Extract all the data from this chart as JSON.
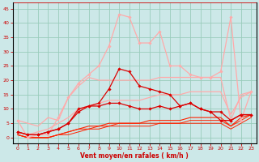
{
  "xlabel": "Vent moyen/en rafales ( km/h )",
  "bg_color": "#cce8e8",
  "grid_color": "#99ccbb",
  "xlim": [
    -0.5,
    23.5
  ],
  "ylim": [
    -2,
    47
  ],
  "yticks": [
    0,
    5,
    10,
    15,
    20,
    25,
    30,
    35,
    40,
    45
  ],
  "xticks": [
    0,
    1,
    2,
    3,
    4,
    5,
    6,
    7,
    8,
    9,
    10,
    11,
    12,
    13,
    14,
    15,
    16,
    17,
    18,
    19,
    20,
    21,
    22,
    23
  ],
  "series": [
    {
      "x": [
        0,
        1,
        2,
        3,
        4,
        5,
        6,
        7,
        8,
        9,
        10,
        11,
        12,
        13,
        14,
        15,
        16,
        17,
        18,
        19,
        20,
        21,
        22,
        23
      ],
      "y": [
        6,
        5,
        4,
        7,
        6,
        14,
        18,
        21,
        20,
        20,
        20,
        20,
        20,
        20,
        21,
        21,
        21,
        21,
        21,
        21,
        21,
        6,
        15,
        16
      ],
      "color": "#ffaaaa",
      "marker": null,
      "lw": 0.9
    },
    {
      "x": [
        0,
        1,
        2,
        3,
        4,
        5,
        6,
        7,
        8,
        9,
        10,
        11,
        12,
        13,
        14,
        15,
        16,
        17,
        18,
        19,
        20,
        21,
        22,
        23
      ],
      "y": [
        6,
        0,
        1,
        1,
        7,
        14,
        19,
        22,
        25,
        32,
        43,
        42,
        33,
        33,
        37,
        25,
        25,
        22,
        21,
        21,
        23,
        42,
        6,
        16
      ],
      "color": "#ffaaaa",
      "marker": "D",
      "markersize": 1.8,
      "lw": 0.9
    },
    {
      "x": [
        0,
        1,
        2,
        3,
        4,
        5,
        6,
        7,
        8,
        9,
        10,
        11,
        12,
        13,
        14,
        15,
        16,
        17,
        18,
        19,
        20,
        21,
        22,
        23
      ],
      "y": [
        2,
        1,
        2,
        3,
        5,
        7,
        10,
        11,
        12,
        13,
        13,
        13,
        13,
        14,
        15,
        15,
        15,
        16,
        16,
        16,
        16,
        8,
        14,
        16
      ],
      "color": "#ffaaaa",
      "marker": null,
      "lw": 0.9
    },
    {
      "x": [
        0,
        1,
        2,
        3,
        4,
        5,
        6,
        7,
        8,
        9,
        10,
        11,
        12,
        13,
        14,
        15,
        16,
        17,
        18,
        19,
        20,
        21,
        22,
        23
      ],
      "y": [
        2,
        1,
        1,
        2,
        3,
        5,
        9,
        11,
        12,
        17,
        24,
        23,
        18,
        17,
        16,
        15,
        11,
        12,
        10,
        9,
        9,
        6,
        8,
        8
      ],
      "color": "#dd0000",
      "marker": "D",
      "markersize": 1.8,
      "lw": 0.9
    },
    {
      "x": [
        0,
        1,
        2,
        3,
        4,
        5,
        6,
        7,
        8,
        9,
        10,
        11,
        12,
        13,
        14,
        15,
        16,
        17,
        18,
        19,
        20,
        21,
        22,
        23
      ],
      "y": [
        2,
        1,
        1,
        2,
        3,
        5,
        10,
        11,
        11,
        12,
        12,
        11,
        10,
        10,
        11,
        10,
        11,
        12,
        10,
        9,
        6,
        6,
        8,
        8
      ],
      "color": "#dd0000",
      "marker": "D",
      "markersize": 1.8,
      "lw": 0.9
    },
    {
      "x": [
        0,
        1,
        2,
        3,
        4,
        5,
        6,
        7,
        8,
        9,
        10,
        11,
        12,
        13,
        14,
        15,
        16,
        17,
        18,
        19,
        20,
        21,
        22,
        23
      ],
      "y": [
        1,
        0,
        0,
        0,
        1,
        2,
        3,
        4,
        4,
        5,
        5,
        5,
        5,
        6,
        6,
        6,
        6,
        7,
        7,
        7,
        7,
        4,
        7,
        8
      ],
      "color": "#ff2200",
      "marker": null,
      "lw": 0.8
    },
    {
      "x": [
        0,
        1,
        2,
        3,
        4,
        5,
        6,
        7,
        8,
        9,
        10,
        11,
        12,
        13,
        14,
        15,
        16,
        17,
        18,
        19,
        20,
        21,
        22,
        23
      ],
      "y": [
        1,
        0,
        0,
        0,
        1,
        2,
        3,
        3,
        4,
        4,
        5,
        5,
        5,
        5,
        5,
        5,
        5,
        6,
        6,
        6,
        6,
        4,
        6,
        8
      ],
      "color": "#ff2200",
      "marker": null,
      "lw": 0.7
    },
    {
      "x": [
        0,
        1,
        2,
        3,
        4,
        5,
        6,
        7,
        8,
        9,
        10,
        11,
        12,
        13,
        14,
        15,
        16,
        17,
        18,
        19,
        20,
        21,
        22,
        23
      ],
      "y": [
        1,
        0,
        0,
        0,
        1,
        1,
        2,
        3,
        3,
        4,
        4,
        4,
        4,
        4,
        5,
        5,
        5,
        5,
        5,
        5,
        5,
        3,
        5,
        7
      ],
      "color": "#ff2200",
      "marker": null,
      "lw": 0.7
    }
  ]
}
